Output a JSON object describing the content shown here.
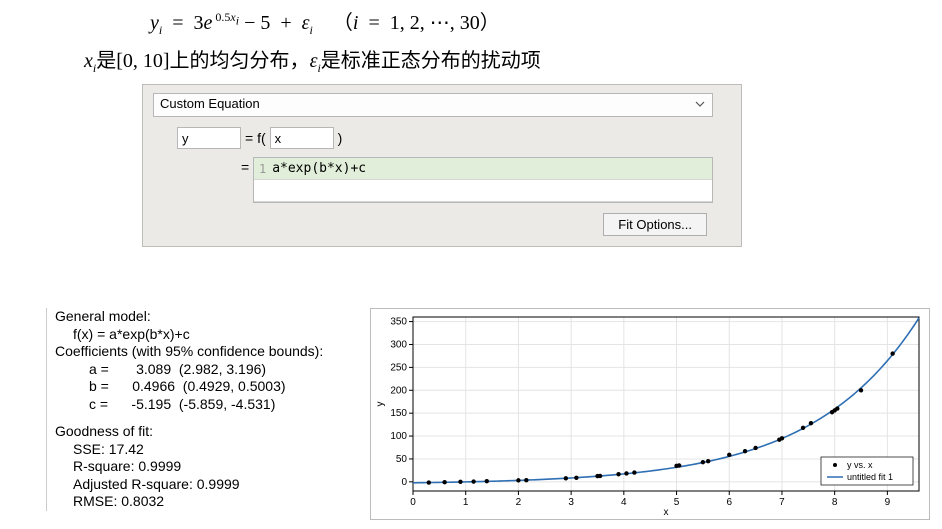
{
  "math": {
    "line1_html": "<i>y</i><span class=\"sub\"><i>i</i></span>&nbsp; = &nbsp;3<i>e</i><span class=\"sup\">&nbsp;0.5<i>x</i><span class=\"sub\"><i>i</i></span></span> − 5&nbsp; + &nbsp;<i>ε</i><span class=\"sub\"><i>i</i></span>&nbsp;&nbsp;&nbsp; （<i>i</i>&nbsp; = &nbsp;1, 2, ⋯, 30）",
    "line2_html": "<i>x</i><span class=\"sub\"><i>i</i></span>是[0, 10]上的均匀分布，<i>ε</i><span class=\"sub\"><i>i</i></span>是标准正态分布的扰动项"
  },
  "panel": {
    "dropdown_label": "Custom Equation",
    "y_value": "y",
    "fn_eq": "= f(",
    "x_value": "x",
    "fn_close": ")",
    "expr_lineno": "1",
    "expression": "a*exp(b*x)+c",
    "fit_options_label": "Fit Options..."
  },
  "results": {
    "general_model": "General model:",
    "fx": "f(x) = a*exp(b*x)+c",
    "coef_header": "Coefficients (with 95% confidence bounds):",
    "a": "a =       3.089  (2.982, 3.196)",
    "b": "b =      0.4966  (0.4929, 0.5003)",
    "c": "c =      -5.195  (-5.859, -4.531)",
    "gof_header": "Goodness of fit:",
    "sse": "SSE: 17.42",
    "r2": "R-square: 0.9999",
    "adj_r2": "Adjusted R-square: 0.9999",
    "rmse": "RMSE: 0.8032"
  },
  "chart": {
    "type": "scatter+line",
    "xlabel": "x",
    "ylabel": "y",
    "xlim": [
      0,
      9.6
    ],
    "ylim": [
      -20,
      360
    ],
    "xtick_step": 1,
    "ytick_step": 50,
    "background_color": "#ffffff",
    "grid_color": "#e4e4e4",
    "axis_color": "#000000",
    "label_fontsize": 10,
    "tick_fontsize": 10,
    "series": {
      "curve": {
        "color": "#2f6fb3",
        "width": 1.6,
        "params": {
          "a": 3.089,
          "b": 0.4966,
          "c": -5.195
        }
      },
      "points": {
        "color": "#000000",
        "marker": "dot",
        "size": 2.2,
        "x": [
          0.3,
          0.6,
          0.9,
          1.15,
          1.4,
          2.0,
          2.15,
          2.9,
          3.1,
          3.5,
          3.55,
          3.9,
          4.05,
          4.2,
          5.0,
          5.05,
          5.5,
          5.6,
          6.0,
          6.3,
          6.5,
          6.95,
          7.0,
          7.4,
          7.55,
          7.95,
          8.0,
          8.05,
          8.5,
          9.1
        ],
        "y": [
          -1.5,
          -0.8,
          0.1,
          0.7,
          1.5,
          3.2,
          3.6,
          7.7,
          8.9,
          12.5,
          12.9,
          16.6,
          18.3,
          20.3,
          35,
          35.7,
          43,
          45,
          59,
          67,
          74,
          92,
          95,
          118,
          128,
          152,
          156,
          160,
          200,
          280
        ]
      }
    },
    "legend": {
      "position": "bottom-right",
      "border_color": "#000000",
      "items": [
        {
          "marker": "dot",
          "color": "#000000",
          "label": "y vs. x"
        },
        {
          "marker": "line",
          "color": "#2f6fb3",
          "label": "untitled fit 1"
        }
      ]
    }
  },
  "colors": {
    "panel_bg": "#eceae6",
    "expr_highlight": "#e1eed9"
  }
}
